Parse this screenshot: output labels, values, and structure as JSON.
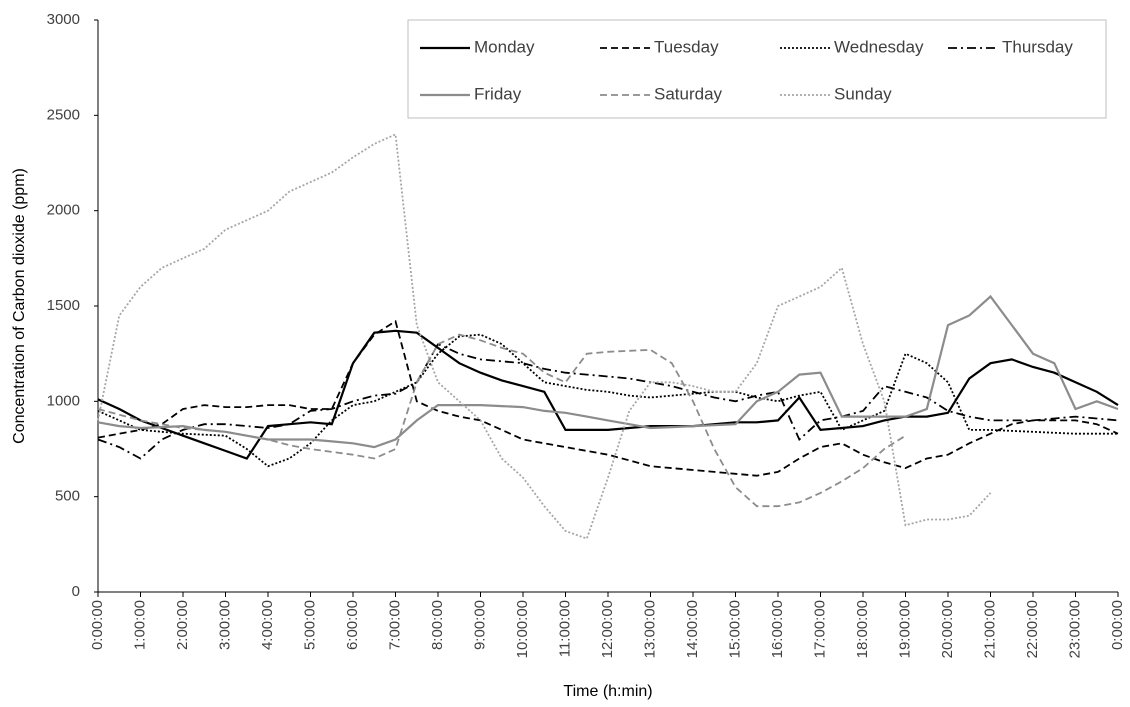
{
  "chart_data": {
    "type": "line",
    "x_label": "Time (h:min)",
    "y_label": "Concentration of Carbon dioxide (ppm)",
    "x": [
      0,
      0.5,
      1,
      1.5,
      2,
      2.5,
      3,
      3.5,
      4,
      4.5,
      5,
      5.5,
      6,
      6.5,
      7,
      7.5,
      8,
      8.5,
      9,
      9.5,
      10,
      10.5,
      11,
      11.5,
      12,
      12.5,
      13,
      13.5,
      14,
      14.5,
      15,
      15.5,
      16,
      16.5,
      17,
      17.5,
      18,
      18.5,
      19,
      19.5,
      20,
      20.5,
      21,
      21.5,
      22,
      22.5,
      23,
      23.5,
      24
    ],
    "xlim": [
      0,
      24
    ],
    "xticks": [
      {
        "value": 0,
        "label": "0:00:00"
      },
      {
        "value": 1,
        "label": "1:00:00"
      },
      {
        "value": 2,
        "label": "2:00:00"
      },
      {
        "value": 3,
        "label": "3:00:00"
      },
      {
        "value": 4,
        "label": "4:00:00"
      },
      {
        "value": 5,
        "label": "5:00:00"
      },
      {
        "value": 6,
        "label": "6:00:00"
      },
      {
        "value": 7,
        "label": "7:00:00"
      },
      {
        "value": 8,
        "label": "8:00:00"
      },
      {
        "value": 9,
        "label": "9:00:00"
      },
      {
        "value": 10,
        "label": "10:00:00"
      },
      {
        "value": 11,
        "label": "11:00:00"
      },
      {
        "value": 12,
        "label": "12:00:00"
      },
      {
        "value": 13,
        "label": "13:00:00"
      },
      {
        "value": 14,
        "label": "14:00:00"
      },
      {
        "value": 15,
        "label": "15:00:00"
      },
      {
        "value": 16,
        "label": "16:00:00"
      },
      {
        "value": 17,
        "label": "17:00:00"
      },
      {
        "value": 18,
        "label": "18:00:00"
      },
      {
        "value": 19,
        "label": "19:00:00"
      },
      {
        "value": 20,
        "label": "20:00:00"
      },
      {
        "value": 21,
        "label": "21:00:00"
      },
      {
        "value": 22,
        "label": "22:00:00"
      },
      {
        "value": 23,
        "label": "23:00:00"
      },
      {
        "value": 24,
        "label": "0:00:00"
      }
    ],
    "ylim": [
      0,
      3000
    ],
    "yticks": [
      0,
      500,
      1000,
      1500,
      2000,
      2500,
      3000
    ],
    "grid": false,
    "legend": "top-right",
    "series": [
      {
        "name": "Monday",
        "color": "#000000",
        "dash": "solid",
        "values": [
          1010,
          960,
          900,
          860,
          820,
          780,
          740,
          700,
          870,
          880,
          890,
          880,
          1200,
          1360,
          1370,
          1360,
          1280,
          1200,
          1150,
          1110,
          1080,
          1050,
          850,
          850,
          850,
          860,
          870,
          870,
          870,
          880,
          890,
          890,
          900,
          1020,
          850,
          860,
          870,
          900,
          920,
          920,
          940,
          1120,
          1200,
          1220,
          1180,
          1150,
          1100,
          1050,
          980
        ]
      },
      {
        "name": "Tuesday",
        "color": "#000000",
        "dash": "dashed",
        "values": [
          810,
          830,
          850,
          880,
          960,
          980,
          970,
          970,
          980,
          980,
          960,
          960,
          1200,
          1350,
          1420,
          1000,
          950,
          920,
          900,
          850,
          800,
          780,
          760,
          740,
          720,
          690,
          660,
          650,
          640,
          630,
          620,
          610,
          630,
          700,
          760,
          780,
          720,
          680,
          650,
          700,
          720,
          780,
          830,
          880,
          900,
          900,
          900,
          880,
          830
        ]
      },
      {
        "name": "Wednesday",
        "color": "#000000",
        "dash": "dotted",
        "values": [
          950,
          900,
          850,
          840,
          830,
          825,
          820,
          750,
          660,
          700,
          780,
          900,
          980,
          1000,
          1050,
          1100,
          1250,
          1340,
          1350,
          1300,
          1200,
          1100,
          1080,
          1060,
          1050,
          1030,
          1020,
          1030,
          1040,
          1050,
          1050,
          1020,
          1000,
          1030,
          1050,
          850,
          900,
          950,
          1250,
          1200,
          1100,
          850,
          850,
          845,
          840,
          835,
          830,
          830,
          830
        ]
      },
      {
        "name": "Thursday",
        "color": "#000000",
        "dash": "dashdot",
        "values": [
          800,
          760,
          700,
          800,
          850,
          880,
          880,
          870,
          860,
          880,
          950,
          960,
          1000,
          1030,
          1040,
          1100,
          1300,
          1250,
          1220,
          1210,
          1200,
          1170,
          1150,
          1140,
          1130,
          1120,
          1100,
          1080,
          1050,
          1020,
          1000,
          1030,
          1050,
          800,
          900,
          920,
          950,
          1080,
          1050,
          1020,
          950,
          920,
          900,
          900,
          900,
          910,
          920,
          910,
          900
        ]
      },
      {
        "name": "Friday",
        "color": "#8c8c8c",
        "dash": "solid",
        "values": [
          890,
          870,
          860,
          865,
          870,
          850,
          840,
          820,
          800,
          800,
          800,
          790,
          780,
          760,
          800,
          900,
          980,
          980,
          980,
          975,
          970,
          950,
          940,
          920,
          900,
          880,
          860,
          865,
          870,
          875,
          880,
          1000,
          1050,
          1140,
          1150,
          920,
          920,
          920,
          920,
          960,
          1400,
          1450,
          1550,
          1400,
          1250,
          1200,
          960,
          1000,
          960
        ]
      },
      {
        "name": "Saturday",
        "color": "#8c8c8c",
        "dash": "dashed",
        "values": [
          960,
          930,
          900,
          880,
          860,
          850,
          840,
          820,
          800,
          770,
          750,
          735,
          720,
          700,
          750,
          1100,
          1300,
          1350,
          1320,
          1280,
          1250,
          1150,
          1100,
          1250,
          1260,
          1265,
          1270,
          1200,
          1000,
          750,
          550,
          450,
          450,
          470,
          520,
          580,
          650,
          750,
          820,
          null,
          null,
          null,
          null,
          null,
          null,
          null,
          null,
          null,
          null
        ]
      },
      {
        "name": "Sunday",
        "color": "#a6a6a6",
        "dash": "dotted",
        "values": [
          900,
          1450,
          1600,
          1700,
          1750,
          1800,
          1900,
          1950,
          2000,
          2100,
          2150,
          2200,
          2280,
          2350,
          2400,
          1400,
          1100,
          1000,
          900,
          700,
          600,
          450,
          320,
          280,
          600,
          950,
          1100,
          1100,
          1080,
          1050,
          1050,
          1200,
          1500,
          1550,
          1600,
          1700,
          1300,
          1000,
          350,
          380,
          380,
          400,
          520,
          null,
          null,
          null,
          null,
          null,
          null
        ]
      }
    ]
  }
}
